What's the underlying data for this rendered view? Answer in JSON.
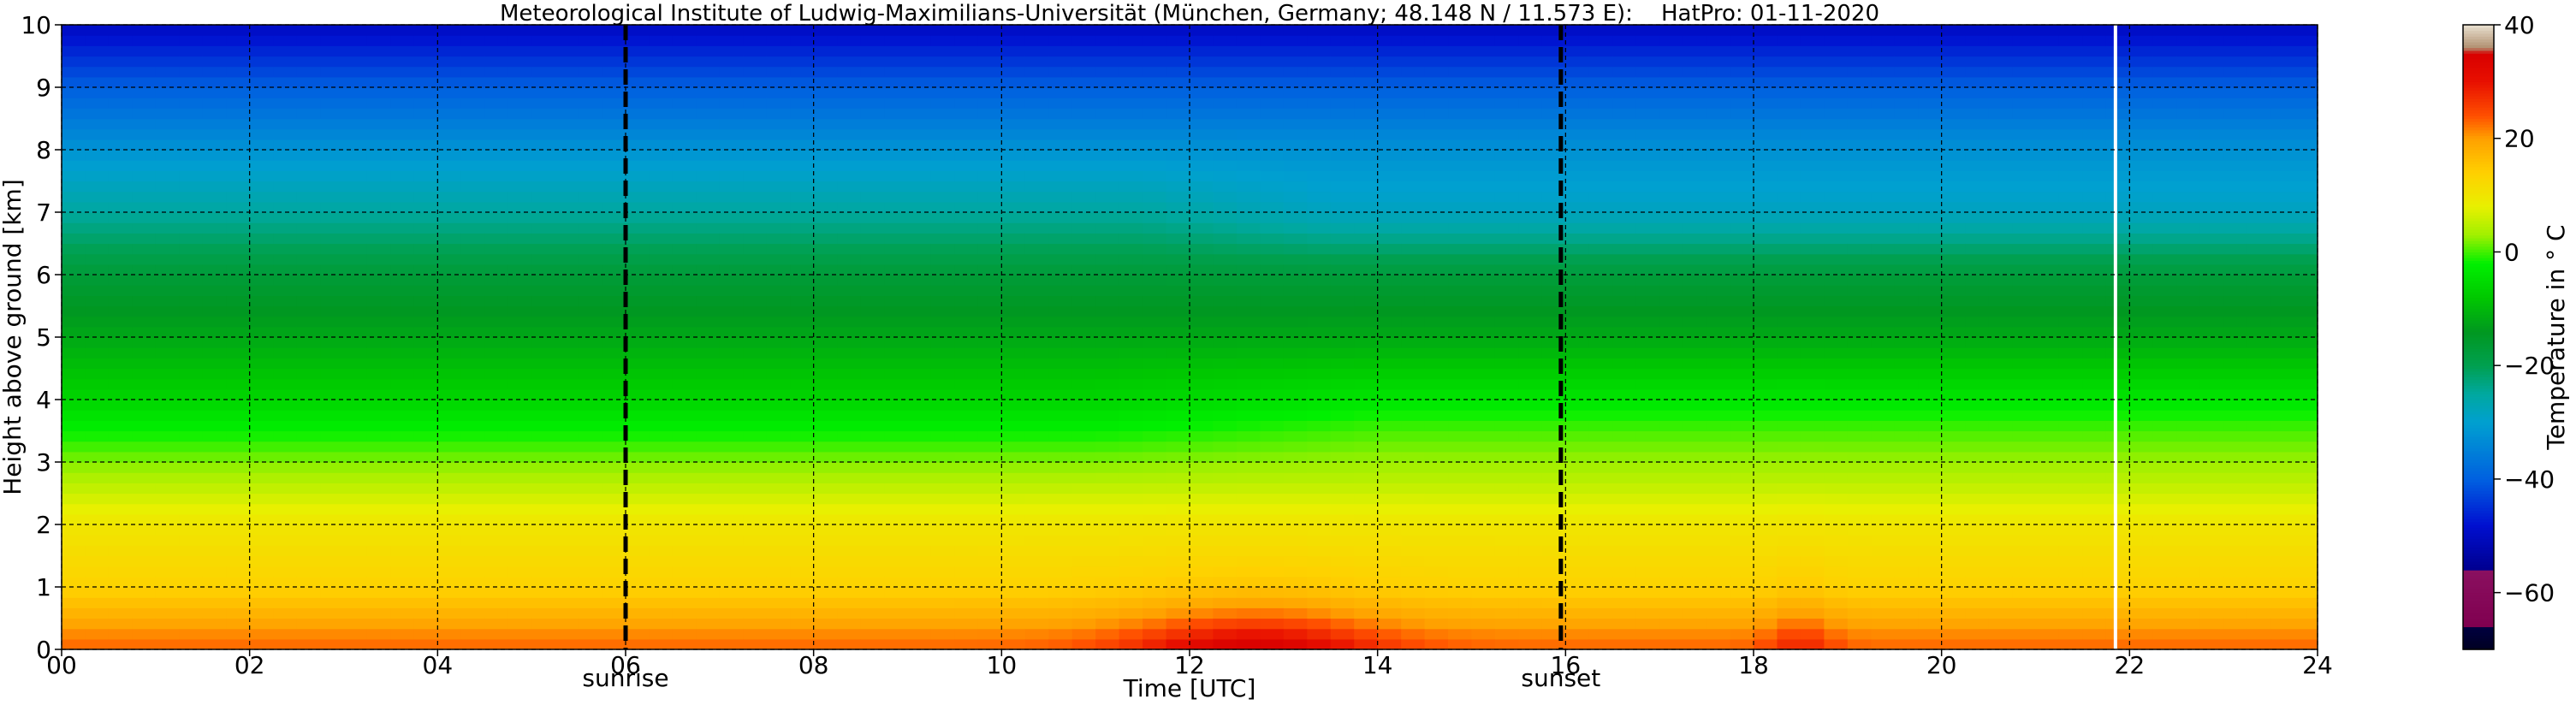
{
  "chart_data": {
    "type": "heatmap",
    "title": "Meteorological Institute of Ludwig-Maximilians-Universität (München, Germany; 48.148 N / 11.573 E):    HatPro: 01-11-2020",
    "xlabel": "Time [UTC]",
    "ylabel": "Height above ground [km]",
    "xlim": [
      0,
      24
    ],
    "ylim": [
      0,
      10
    ],
    "x_ticks": [
      0,
      2,
      4,
      6,
      8,
      10,
      12,
      14,
      16,
      18,
      20,
      22,
      24
    ],
    "x_tick_labels": [
      "00",
      "02",
      "04",
      "06",
      "08",
      "10",
      "12",
      "14",
      "16",
      "18",
      "20",
      "22",
      "24"
    ],
    "y_ticks": [
      0,
      1,
      2,
      3,
      4,
      5,
      6,
      7,
      8,
      9,
      10
    ],
    "y_tick_labels": [
      "0",
      "1",
      "2",
      "3",
      "4",
      "5",
      "6",
      "7",
      "8",
      "9",
      "10"
    ],
    "grid": true,
    "markers": [
      {
        "label": "sunrise",
        "x": 6.0,
        "style": "dashed"
      },
      {
        "label": "sunset",
        "x": 15.95,
        "style": "dashed"
      }
    ],
    "data_gap_x": 21.85,
    "colorbar": {
      "label": "Temperature in $^\\circ$C",
      "label_display": "Temperature in ° C",
      "range": [
        -70,
        40
      ],
      "ticks": [
        40,
        20,
        0,
        -20,
        -40,
        -60
      ],
      "tick_labels": [
        "40",
        "20",
        "0",
        "−20",
        "−40",
        "−60"
      ],
      "stops": [
        {
          "t": -70,
          "color": "#000022"
        },
        {
          "t": -66,
          "color": "#000040"
        },
        {
          "t": -65.9,
          "color": "#800050"
        },
        {
          "t": -56,
          "color": "#8a1060"
        },
        {
          "t": -55.9,
          "color": "#000090"
        },
        {
          "t": -48,
          "color": "#0010d0"
        },
        {
          "t": -40,
          "color": "#0060e0"
        },
        {
          "t": -30,
          "color": "#00a0d0"
        },
        {
          "t": -25,
          "color": "#00a8a0"
        },
        {
          "t": -20,
          "color": "#00a050"
        },
        {
          "t": -14,
          "color": "#009820"
        },
        {
          "t": -8,
          "color": "#00c800"
        },
        {
          "t": -2,
          "color": "#00f000"
        },
        {
          "t": 3,
          "color": "#a0f000"
        },
        {
          "t": 8,
          "color": "#e8f000"
        },
        {
          "t": 14,
          "color": "#ffd000"
        },
        {
          "t": 20,
          "color": "#ffa000"
        },
        {
          "t": 24,
          "color": "#ff5000"
        },
        {
          "t": 30,
          "color": "#e81000"
        },
        {
          "t": 35,
          "color": "#d80000"
        },
        {
          "t": 36,
          "color": "#b09070"
        },
        {
          "t": 40,
          "color": "#e8e0d0"
        }
      ]
    },
    "temperature_profile_noon": [
      {
        "height_km": 0,
        "temp_c": 28
      },
      {
        "height_km": 0.5,
        "temp_c": 20
      },
      {
        "height_km": 1,
        "temp_c": 14
      },
      {
        "height_km": 2,
        "temp_c": 10
      },
      {
        "height_km": 3,
        "temp_c": 2
      },
      {
        "height_km": 4,
        "temp_c": -6
      },
      {
        "height_km": 5,
        "temp_c": -12
      },
      {
        "height_km": 6,
        "temp_c": -17
      },
      {
        "height_km": 7,
        "temp_c": -25
      },
      {
        "height_km": 8,
        "temp_c": -32
      },
      {
        "height_km": 9,
        "temp_c": -40
      },
      {
        "height_km": 10,
        "temp_c": -50
      }
    ]
  }
}
